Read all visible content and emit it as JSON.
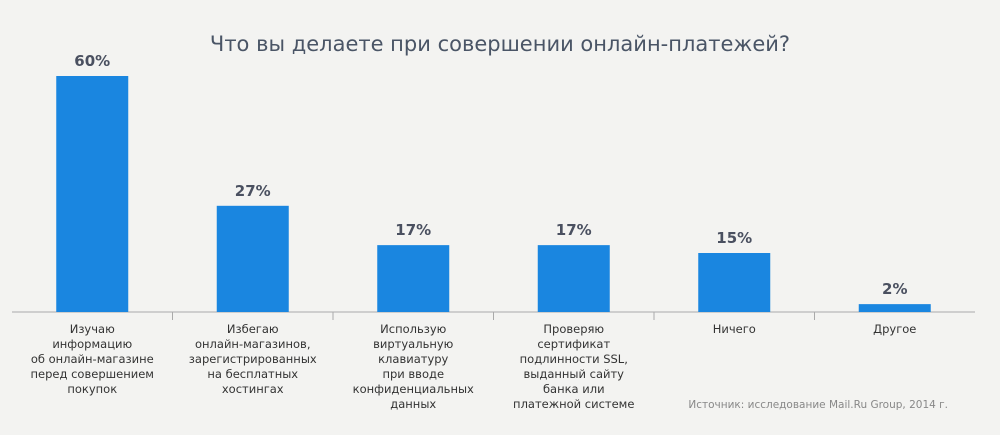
{
  "chart_data": {
    "type": "bar",
    "title": "Что вы делаете при совершении онлайн-платежей?",
    "categories": [
      "Изучаю\nинформацию\nоб онлайн-магазине\nперед совершением\nпокупок",
      "Избегаю\nонлайн-магазинов,\nзарегистрированных\nна бесплатных\nхостингах",
      "Использую\nвиртуальную\nклавиатуру\nпри вводе\nконфиденциальных\nданных",
      "Проверяю\nсертификат\nподлинности SSL,\nвыданный сайту\nбанка или\nплатежной системе",
      "Ничего",
      "Другое"
    ],
    "values": [
      60,
      27,
      17,
      17,
      15,
      2
    ],
    "value_labels": [
      "60%",
      "27%",
      "17%",
      "17%",
      "15%",
      "2%"
    ],
    "color": "#1a86e0",
    "source": "Источник: исследование Mail.Ru Group, 2014 г."
  }
}
